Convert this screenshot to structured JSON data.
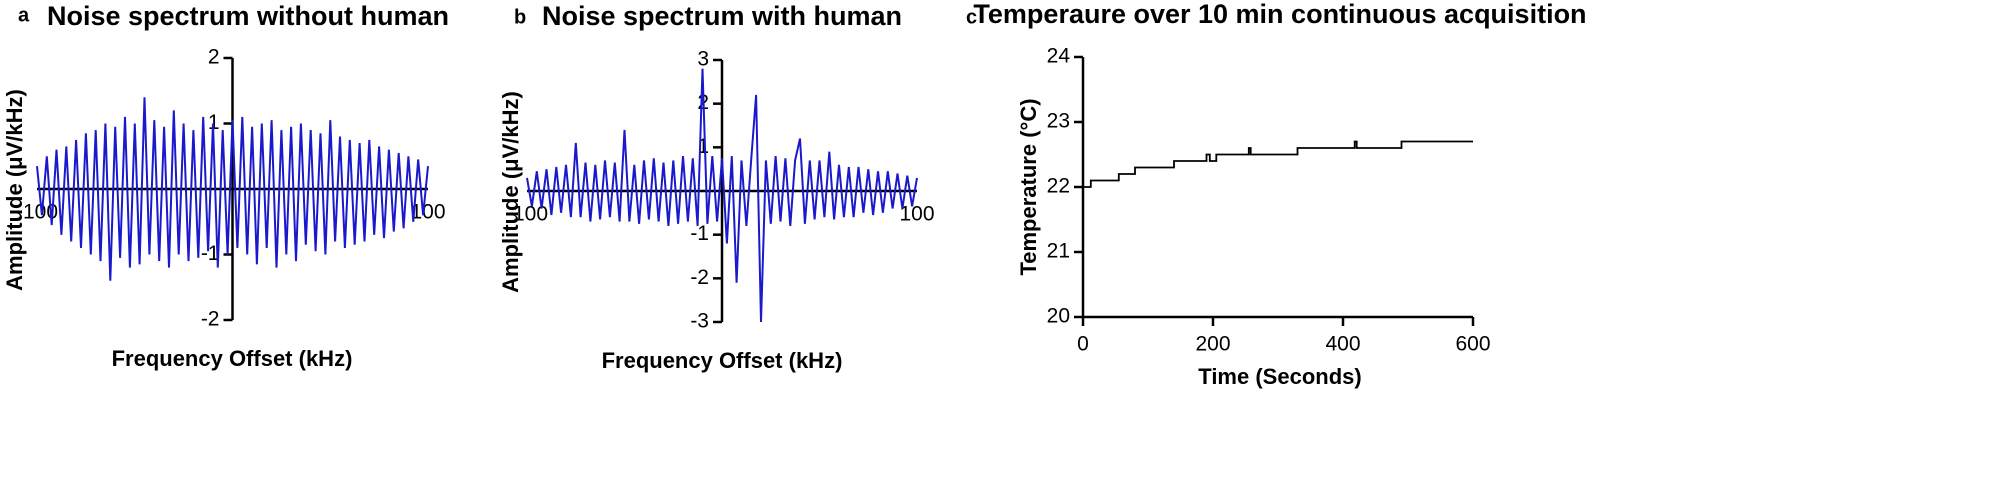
{
  "chart_data": [
    {
      "type": "line",
      "panel_label": "a",
      "title": "Noise spectrum without human",
      "x_label": "Frequency Offset  (kHz)",
      "y_label": "Amplitude  (μV/kHz)",
      "axis_position": "center",
      "xlim": [
        -100,
        100
      ],
      "ylim": [
        -2,
        2
      ],
      "xticks": [
        -100,
        100
      ],
      "yticks": [
        -2,
        -1,
        1,
        2
      ],
      "x": [
        -100,
        -97.5,
        -95,
        -92.5,
        -90,
        -87.5,
        -85,
        -82.5,
        -80,
        -77.5,
        -75,
        -72.5,
        -70,
        -67.5,
        -65,
        -62.5,
        -60,
        -57.5,
        -55,
        -52.5,
        -50,
        -47.5,
        -45,
        -42.5,
        -40,
        -37.5,
        -35,
        -32.5,
        -30,
        -27.5,
        -25,
        -22.5,
        -20,
        -17.5,
        -15,
        -12.5,
        -10,
        -7.5,
        -5,
        -2.5,
        0,
        2.5,
        5,
        7.5,
        10,
        12.5,
        15,
        17.5,
        20,
        22.5,
        25,
        27.5,
        30,
        32.5,
        35,
        37.5,
        40,
        42.5,
        45,
        47.5,
        50,
        52.5,
        55,
        57.5,
        60,
        62.5,
        65,
        67.5,
        70,
        72.5,
        75,
        77.5,
        80,
        82.5,
        85,
        87.5,
        90,
        92.5,
        95,
        97.5,
        100
      ],
      "series": [
        {
          "color": "#1a1acc",
          "values": [
            0.35,
            -0.4,
            0.5,
            -0.55,
            0.6,
            -0.7,
            0.65,
            -0.8,
            0.75,
            -0.9,
            0.85,
            -1.0,
            0.9,
            -1.1,
            1.0,
            -1.4,
            0.95,
            -1.05,
            1.1,
            -1.2,
            1.0,
            -1.15,
            1.4,
            -1.0,
            1.05,
            -1.1,
            0.95,
            -1.2,
            1.2,
            -1.0,
            1.0,
            -1.1,
            0.9,
            -1.05,
            1.1,
            -0.95,
            1.0,
            -1.2,
            0.9,
            -1.0,
            1.05,
            -0.9,
            1.1,
            -1.0,
            0.95,
            -1.15,
            1.0,
            -0.9,
            1.05,
            -1.2,
            0.9,
            -1.0,
            0.95,
            -1.1,
            1.0,
            -0.85,
            0.9,
            -0.95,
            0.85,
            -1.0,
            1.05,
            -0.8,
            0.8,
            -0.9,
            0.75,
            -0.85,
            0.7,
            -0.8,
            0.75,
            -0.7,
            0.65,
            -0.75,
            0.6,
            -0.65,
            0.55,
            -0.6,
            0.5,
            -0.5,
            0.45,
            -0.4,
            0.35
          ]
        }
      ]
    },
    {
      "type": "line",
      "panel_label": "b",
      "title": "Noise spectrum with human",
      "x_label": "Frequency Offset  (kHz)",
      "y_label": "Amplitude  (μV/kHz)",
      "axis_position": "center",
      "xlim": [
        -100,
        100
      ],
      "ylim": [
        -3,
        3
      ],
      "xticks": [
        -100,
        100
      ],
      "yticks": [
        -3,
        -2,
        -1,
        1,
        2,
        3
      ],
      "x": [
        -100,
        -97.5,
        -95,
        -92.5,
        -90,
        -87.5,
        -85,
        -82.5,
        -80,
        -77.5,
        -75,
        -72.5,
        -70,
        -67.5,
        -65,
        -62.5,
        -60,
        -57.5,
        -55,
        -52.5,
        -50,
        -47.5,
        -45,
        -42.5,
        -40,
        -37.5,
        -35,
        -32.5,
        -30,
        -27.5,
        -25,
        -22.5,
        -20,
        -17.5,
        -15,
        -12.5,
        -10,
        -7.5,
        -5,
        -2.5,
        0,
        2.5,
        5,
        7.5,
        10,
        12.5,
        15,
        17.5,
        20,
        22.5,
        25,
        27.5,
        30,
        32.5,
        35,
        37.5,
        40,
        42.5,
        45,
        47.5,
        50,
        52.5,
        55,
        57.5,
        60,
        62.5,
        65,
        67.5,
        70,
        72.5,
        75,
        77.5,
        80,
        82.5,
        85,
        87.5,
        90,
        92.5,
        95,
        97.5,
        100
      ],
      "series": [
        {
          "color": "#1a1acc",
          "values": [
            0.3,
            -0.35,
            0.45,
            -0.4,
            0.5,
            -0.55,
            0.55,
            -0.5,
            0.6,
            -0.6,
            1.1,
            -0.6,
            0.65,
            -0.7,
            0.6,
            -0.65,
            0.7,
            -0.6,
            0.65,
            -0.7,
            1.4,
            -0.7,
            0.6,
            -0.75,
            0.7,
            -0.65,
            0.75,
            -0.7,
            0.65,
            -0.8,
            0.7,
            -0.75,
            0.8,
            -0.7,
            0.75,
            -0.8,
            2.8,
            -0.75,
            0.8,
            -0.7,
            0.75,
            -1.2,
            0.8,
            -2.1,
            0.7,
            -0.8,
            0.75,
            2.2,
            -3.0,
            0.7,
            -0.75,
            0.8,
            -0.7,
            0.75,
            -0.8,
            0.7,
            1.2,
            -0.75,
            0.7,
            -0.65,
            0.7,
            -0.6,
            0.9,
            -0.65,
            0.6,
            -0.6,
            0.55,
            -0.6,
            0.55,
            -0.5,
            0.5,
            -0.55,
            0.45,
            -0.5,
            0.45,
            -0.4,
            0.4,
            -0.4,
            0.35,
            -0.35,
            0.3
          ]
        }
      ]
    },
    {
      "type": "line",
      "panel_label": "c",
      "title": "Temperaure over 10 min continuous acquisition",
      "x_label": "Time (Seconds)",
      "y_label": "Temperature (°C)",
      "axis_position": "left",
      "xlim": [
        0,
        600
      ],
      "ylim": [
        20,
        24
      ],
      "xticks": [
        0,
        200,
        400,
        600
      ],
      "yticks": [
        20,
        21,
        22,
        23,
        24
      ],
      "x": [
        0,
        12,
        12,
        55,
        55,
        80,
        80,
        140,
        140,
        190,
        190,
        195,
        195,
        205,
        205,
        255,
        255,
        258,
        258,
        330,
        330,
        418,
        418,
        421,
        421,
        490,
        490,
        600
      ],
      "series": [
        {
          "color": "#000000",
          "values": [
            22.0,
            22.0,
            22.1,
            22.1,
            22.2,
            22.2,
            22.3,
            22.3,
            22.4,
            22.4,
            22.5,
            22.5,
            22.4,
            22.4,
            22.5,
            22.5,
            22.6,
            22.6,
            22.5,
            22.5,
            22.6,
            22.6,
            22.7,
            22.7,
            22.6,
            22.6,
            22.7,
            22.7
          ]
        }
      ]
    }
  ]
}
